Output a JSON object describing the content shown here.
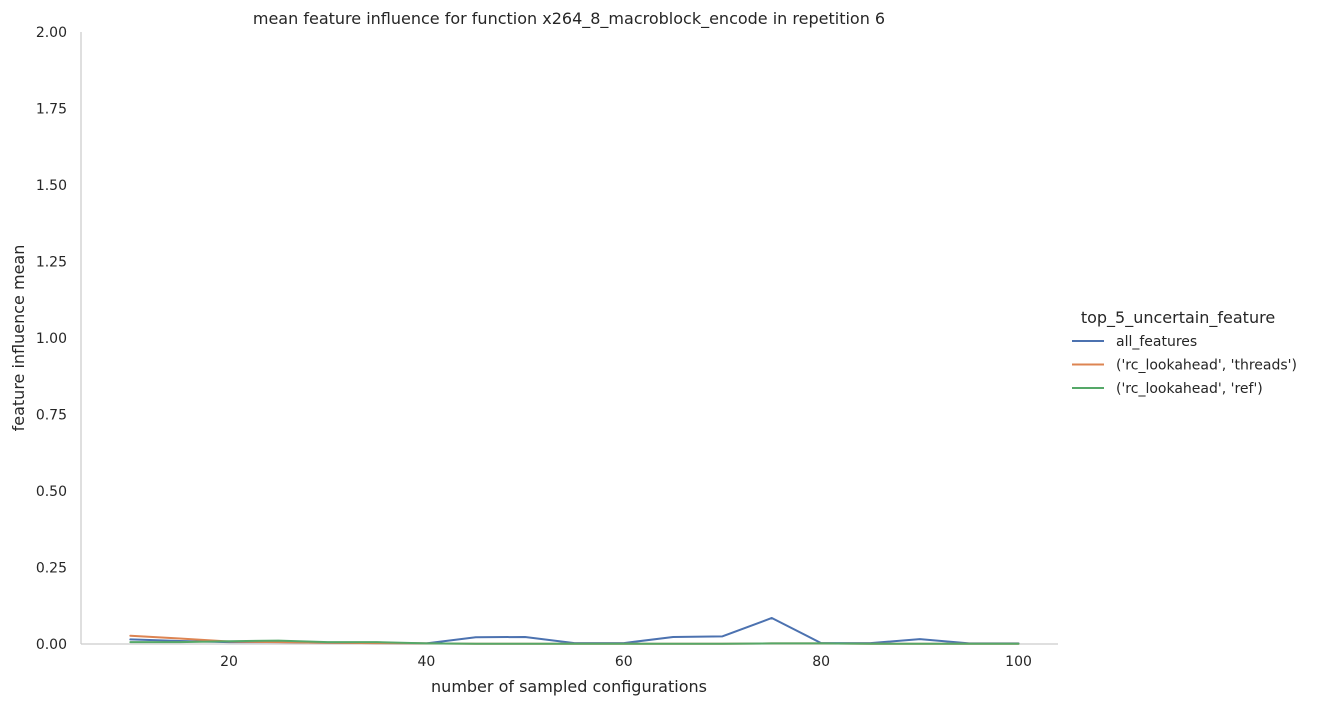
{
  "chart_data": {
    "type": "line",
    "title": "mean feature influence for function x264_8_macroblock_encode in repetition 6",
    "xlabel": "number of sampled configurations",
    "ylabel": "feature influence mean",
    "xlim": [
      5,
      104
    ],
    "ylim": [
      0,
      2.0
    ],
    "xticks": [
      20,
      40,
      60,
      80,
      100
    ],
    "yticks": [
      0.0,
      0.25,
      0.5,
      0.75,
      1.0,
      1.25,
      1.5,
      1.75,
      2.0
    ],
    "xtick_labels": [
      "20",
      "40",
      "60",
      "80",
      "100"
    ],
    "ytick_labels": [
      "0.00",
      "0.25",
      "0.50",
      "0.75",
      "1.00",
      "1.25",
      "1.50",
      "1.75",
      "2.00"
    ],
    "grid": false,
    "legend_title": "top_5_uncertain_feature",
    "legend_position": "center-right outside",
    "series": [
      {
        "name": "all_features",
        "color": "#4c72b0",
        "x": [
          10,
          15,
          20,
          25,
          30,
          35,
          40,
          45,
          50,
          55,
          60,
          65,
          70,
          75,
          80,
          85,
          90,
          95,
          100
        ],
        "y": [
          0.015,
          0.01,
          0.006,
          0.006,
          0.004,
          0.003,
          0.002,
          0.022,
          0.023,
          0.003,
          0.003,
          0.023,
          0.025,
          0.085,
          0.003,
          0.003,
          0.016,
          0.002,
          0.002
        ]
      },
      {
        "name": "('rc_lookahead', 'threads')",
        "color": "#dd8452",
        "x": [
          10,
          15,
          20,
          25,
          30,
          35,
          40,
          45,
          50,
          55,
          60,
          65,
          70,
          75,
          80,
          85,
          90,
          95,
          100
        ],
        "y": [
          0.027,
          0.018,
          0.008,
          0.006,
          0.004,
          0.003,
          0.002,
          0.001,
          0.001,
          0.001,
          0.001,
          0.001,
          0.001,
          0.002,
          0.002,
          0.001,
          0.001,
          0.001,
          0.001
        ]
      },
      {
        "name": "('rc_lookahead', 'ref')",
        "color": "#55a868",
        "x": [
          10,
          15,
          20,
          25,
          30,
          35,
          40,
          45,
          50,
          55,
          60,
          65,
          70,
          75,
          80,
          85,
          90,
          95,
          100
        ],
        "y": [
          0.006,
          0.006,
          0.009,
          0.011,
          0.006,
          0.006,
          0.002,
          0.001,
          0.001,
          0.001,
          0.001,
          0.001,
          0.001,
          0.002,
          0.002,
          0.001,
          0.001,
          0.001,
          0.001
        ]
      }
    ]
  }
}
